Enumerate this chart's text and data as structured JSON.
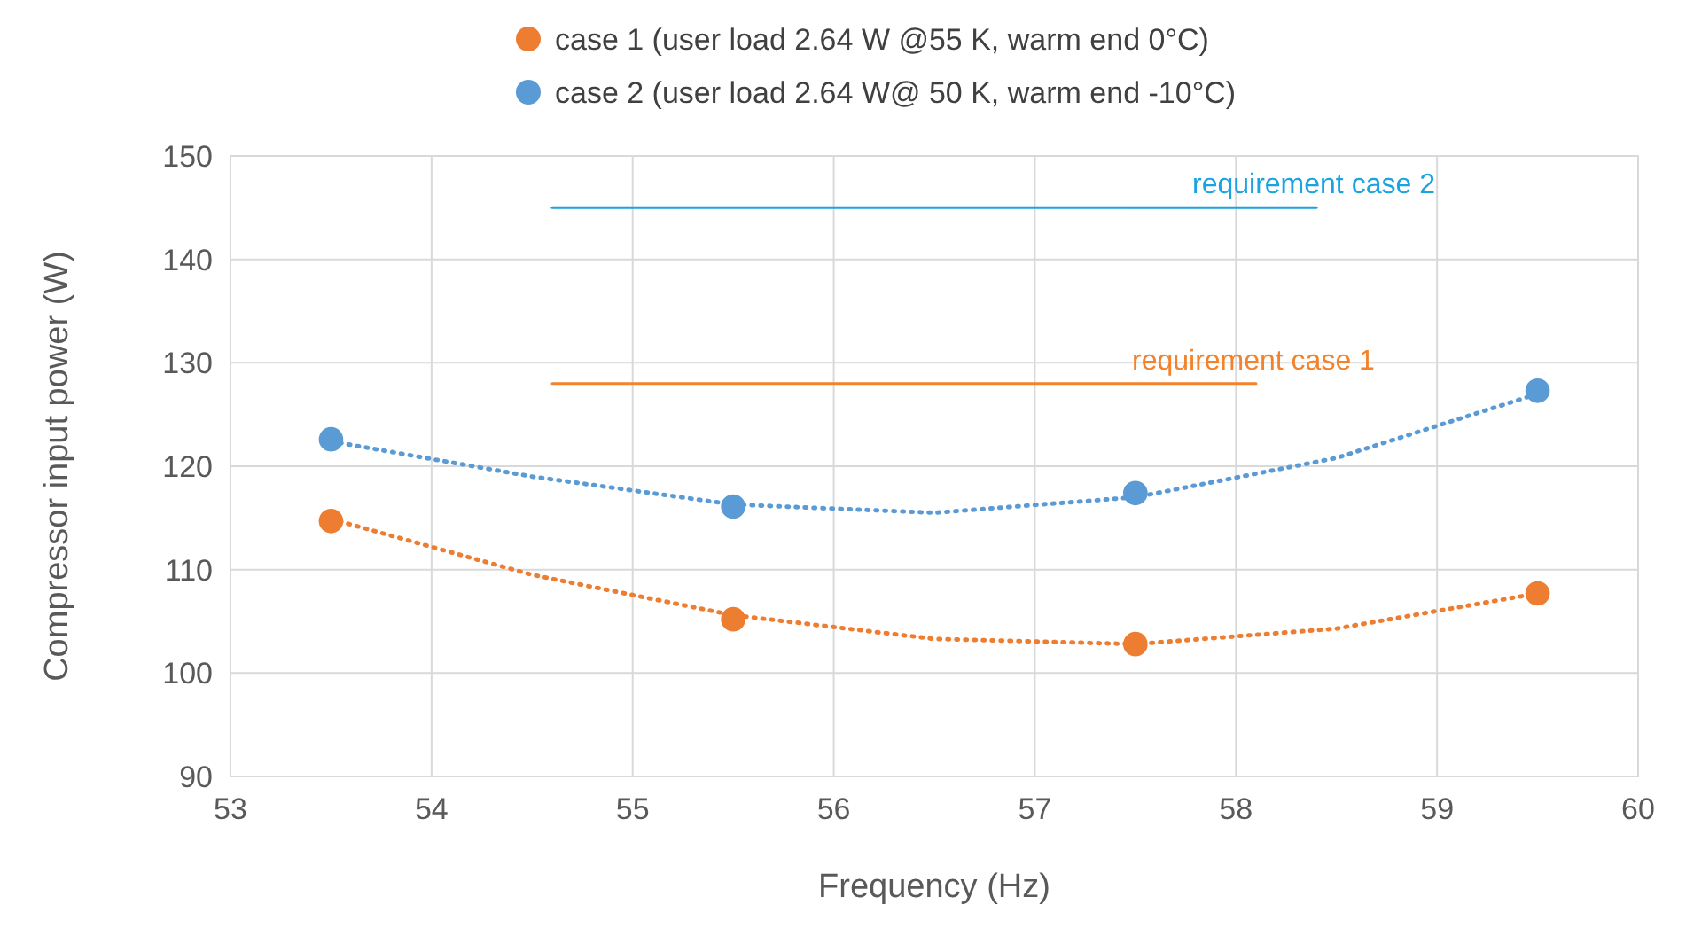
{
  "chart_data": {
    "type": "scatter",
    "xlabel": "Frequency (Hz)",
    "ylabel": "Compressor input power (W)",
    "xlim": [
      53,
      60
    ],
    "xticks": [
      53,
      54,
      55,
      56,
      57,
      58,
      59,
      60
    ],
    "ylim": [
      90,
      150
    ],
    "yticks": [
      90,
      100,
      110,
      120,
      130,
      140,
      150
    ],
    "grid": true,
    "legend": "top",
    "series": [
      {
        "name": "case 1 (user load 2.64 W @55 K, warm end 0°C)",
        "color": "#ed7d31",
        "marker": "circle",
        "x": [
          53.5,
          55.5,
          57.5,
          59.5
        ],
        "values": [
          114.7,
          105.2,
          102.8,
          107.7
        ]
      },
      {
        "name": "case 2 (user load 2.64 W@ 50 K, warm end -10°C)",
        "color": "#5b9bd5",
        "marker": "circle",
        "x": [
          53.5,
          55.5,
          57.5,
          59.5
        ],
        "values": [
          122.6,
          116.1,
          117.4,
          127.3
        ]
      },
      {
        "color": "#ed7d31",
        "type": "line",
        "marker": "none",
        "line_style": "dotted",
        "x": [
          53.5,
          54.5,
          55.5,
          56.5,
          57.5,
          58.5,
          59.5
        ],
        "values": [
          114.9,
          109.5,
          105.6,
          103.3,
          102.8,
          104.3,
          107.7
        ]
      },
      {
        "color": "#5b9bd5",
        "type": "line",
        "marker": "none",
        "line_style": "dotted",
        "x": [
          53.5,
          54.5,
          55.5,
          56.5,
          57.5,
          58.5,
          59.5
        ],
        "values": [
          122.4,
          119,
          116.3,
          115.5,
          117,
          120.8,
          127
        ]
      },
      {
        "name": "requirement case 2",
        "color": "#1aa3e0",
        "type": "line",
        "marker": "none",
        "line_style": "solid",
        "x": [
          54.6,
          58.4
        ],
        "values": [
          145,
          145
        ]
      },
      {
        "name": "requirement case 1",
        "color": "#f4822a",
        "type": "line",
        "marker": "none",
        "line_style": "solid",
        "x": [
          54.6,
          58.1
        ],
        "values": [
          128,
          128
        ]
      }
    ]
  }
}
